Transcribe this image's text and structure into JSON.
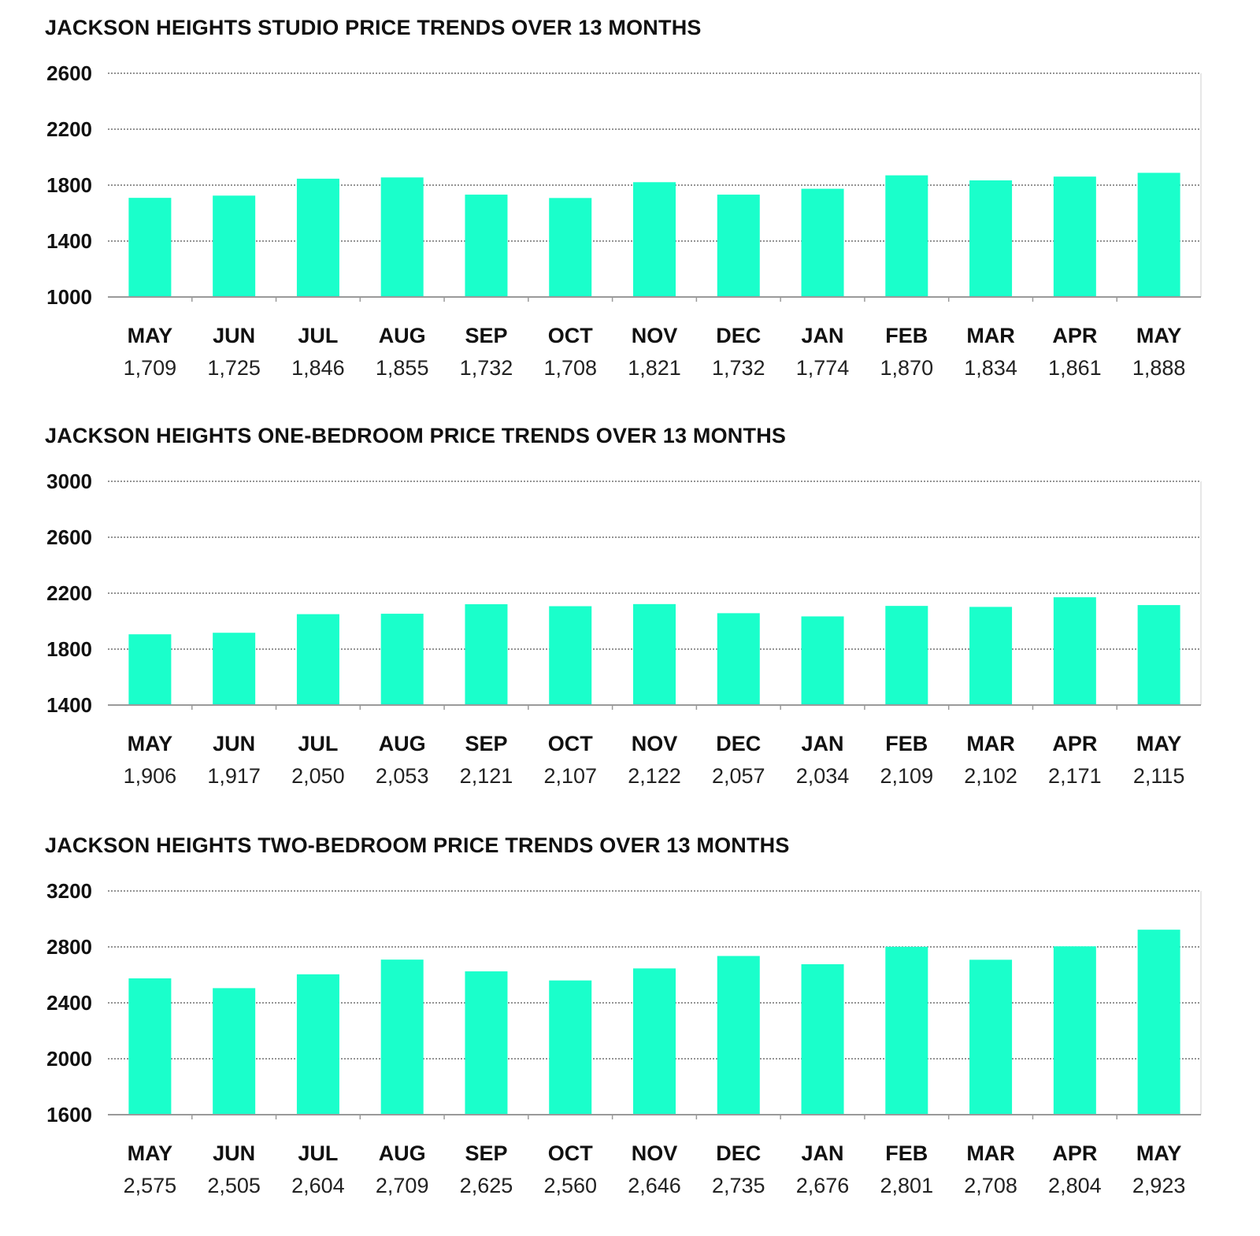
{
  "colors": {
    "bar": "#1affcb",
    "text": "#111111",
    "grid": "#555555",
    "axis": "#9a9a9a"
  },
  "chart_data": [
    {
      "type": "bar",
      "title": "JACKSON HEIGHTS STUDIO PRICE TRENDS OVER 13 MONTHS",
      "categories": [
        "MAY",
        "JUN",
        "JUL",
        "AUG",
        "SEP",
        "OCT",
        "NOV",
        "DEC",
        "JAN",
        "FEB",
        "MAR",
        "APR",
        "MAY"
      ],
      "values": [
        1709,
        1725,
        1846,
        1855,
        1732,
        1708,
        1821,
        1732,
        1774,
        1870,
        1834,
        1861,
        1888
      ],
      "value_labels": [
        "1,709",
        "1,725",
        "1,846",
        "1,855",
        "1,732",
        "1,708",
        "1,821",
        "1,732",
        "1,774",
        "1,870",
        "1,834",
        "1,861",
        "1,888"
      ],
      "yticks": [
        1000,
        1400,
        1800,
        2200,
        2600
      ],
      "ytick_labels": [
        "1000",
        "1400",
        "1800",
        "2200",
        "2600"
      ],
      "ylim": [
        1000,
        2600
      ],
      "grid": true,
      "xlabel": "",
      "ylabel": ""
    },
    {
      "type": "bar",
      "title": "JACKSON HEIGHTS ONE-BEDROOM PRICE TRENDS OVER 13 MONTHS",
      "categories": [
        "MAY",
        "JUN",
        "JUL",
        "AUG",
        "SEP",
        "OCT",
        "NOV",
        "DEC",
        "JAN",
        "FEB",
        "MAR",
        "APR",
        "MAY"
      ],
      "values": [
        1906,
        1917,
        2050,
        2053,
        2121,
        2107,
        2122,
        2057,
        2034,
        2109,
        2102,
        2171,
        2115
      ],
      "value_labels": [
        "1,906",
        "1,917",
        "2,050",
        "2,053",
        "2,121",
        "2,107",
        "2,122",
        "2,057",
        "2,034",
        "2,109",
        "2,102",
        "2,171",
        "2,115"
      ],
      "yticks": [
        1400,
        1800,
        2200,
        2600,
        3000
      ],
      "ytick_labels": [
        "1400",
        "1800",
        "2200",
        "2600",
        "3000"
      ],
      "ylim": [
        1400,
        3000
      ],
      "grid": true,
      "xlabel": "",
      "ylabel": ""
    },
    {
      "type": "bar",
      "title": "JACKSON HEIGHTS TWO-BEDROOM PRICE TRENDS OVER 13 MONTHS",
      "categories": [
        "MAY",
        "JUN",
        "JUL",
        "AUG",
        "SEP",
        "OCT",
        "NOV",
        "DEC",
        "JAN",
        "FEB",
        "MAR",
        "APR",
        "MAY"
      ],
      "values": [
        2575,
        2505,
        2604,
        2709,
        2625,
        2560,
        2646,
        2735,
        2676,
        2801,
        2708,
        2804,
        2923
      ],
      "value_labels": [
        "2,575",
        "2,505",
        "2,604",
        "2,709",
        "2,625",
        "2,560",
        "2,646",
        "2,735",
        "2,676",
        "2,801",
        "2,708",
        "2,804",
        "2,923"
      ],
      "yticks": [
        1600,
        2000,
        2400,
        2800,
        3200
      ],
      "ytick_labels": [
        "1600",
        "2000",
        "2400",
        "2800",
        "3200"
      ],
      "ylim": [
        1600,
        3200
      ],
      "grid": true,
      "xlabel": "",
      "ylabel": ""
    }
  ]
}
